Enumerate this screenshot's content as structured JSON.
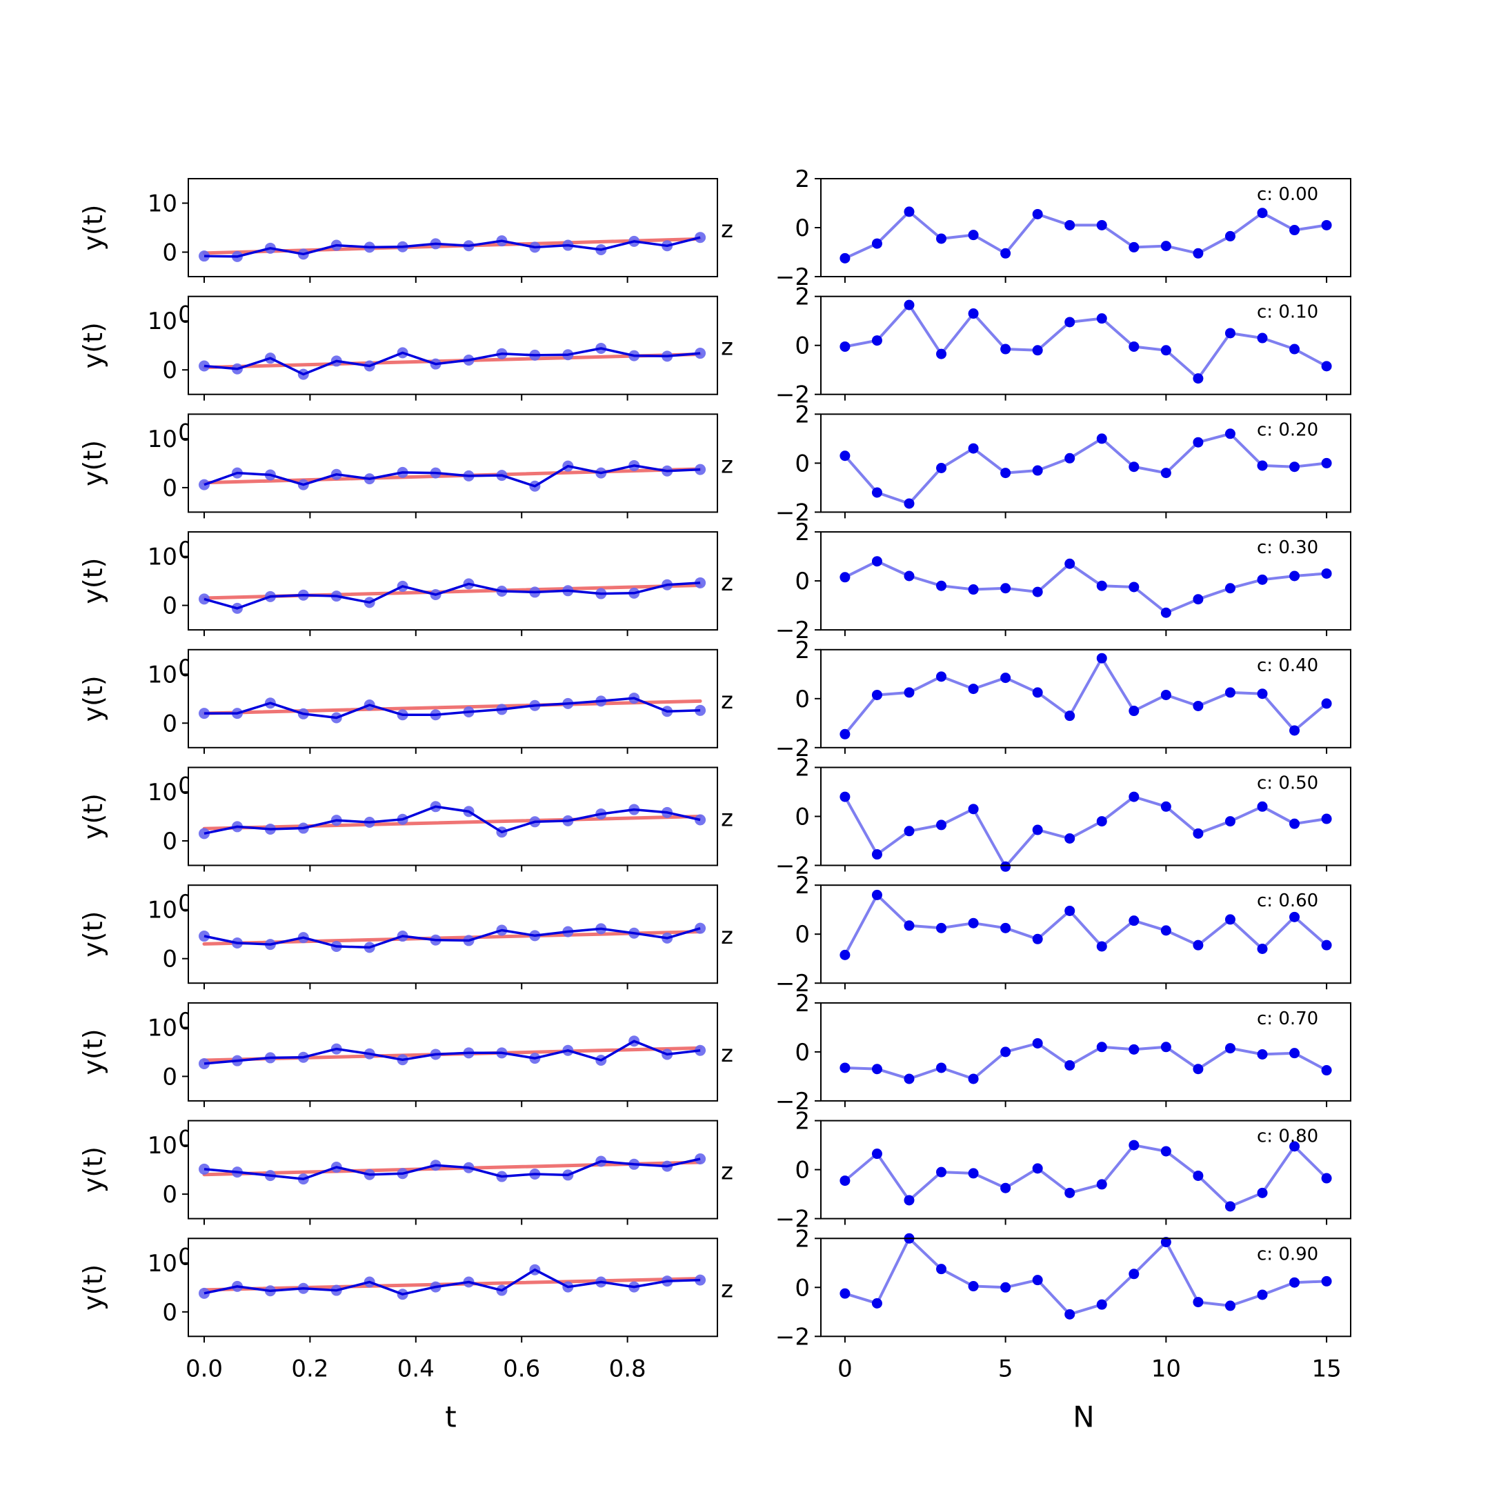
{
  "chart_data": [
    {
      "type": "line",
      "column": "left",
      "xlabel": "t",
      "ylabel": "y(t)",
      "xlim": [
        -0.03,
        0.97
      ],
      "ylim": [
        -5,
        15
      ],
      "xticks": [
        0.0,
        0.2,
        0.4,
        0.6,
        0.8
      ],
      "xtick_labels": [
        "0.0",
        "0.2",
        "0.4",
        "0.6",
        "0.8"
      ],
      "yticks": [
        0,
        10
      ],
      "ytick_labels": [
        "0",
        "10"
      ],
      "x": [
        0.0,
        0.0625,
        0.125,
        0.1875,
        0.25,
        0.3125,
        0.375,
        0.4375,
        0.5,
        0.5625,
        0.625,
        0.6875,
        0.75,
        0.8125,
        0.875,
        0.9375
      ],
      "colors": {
        "data": "#0000dd",
        "data_marker": "#6666ee",
        "trend": "#ee6666"
      },
      "panels": [
        {
          "trend": [
            -0.2,
            2.7
          ],
          "values": [
            -0.8,
            -0.9,
            0.8,
            -0.4,
            1.4,
            1.0,
            1.1,
            1.7,
            1.3,
            2.3,
            1.0,
            1.4,
            0.5,
            2.2,
            1.3,
            3.0
          ]
        },
        {
          "trend": [
            0.5,
            3.2
          ],
          "values": [
            0.8,
            0.2,
            2.4,
            -0.9,
            1.8,
            0.8,
            3.5,
            1.2,
            2.0,
            3.3,
            3.0,
            3.1,
            4.4,
            2.9,
            2.8,
            3.4
          ]
        },
        {
          "trend": [
            1.0,
            3.8
          ],
          "values": [
            0.6,
            3.0,
            2.6,
            0.6,
            2.7,
            1.8,
            3.1,
            3.0,
            2.4,
            2.5,
            0.3,
            4.4,
            3.0,
            4.5,
            3.4,
            3.7
          ]
        },
        {
          "trend": [
            1.5,
            4.1
          ],
          "values": [
            1.3,
            -0.6,
            1.8,
            2.1,
            1.9,
            0.6,
            3.9,
            2.2,
            4.4,
            2.9,
            2.7,
            3.0,
            2.4,
            2.5,
            4.2,
            4.6
          ]
        },
        {
          "trend": [
            2.0,
            4.5
          ],
          "values": [
            2.0,
            2.0,
            4.1,
            1.9,
            1.1,
            3.7,
            1.7,
            1.7,
            2.3,
            2.8,
            3.6,
            4.0,
            4.5,
            5.1,
            2.4,
            2.6
          ]
        },
        {
          "trend": [
            2.5,
            5.0
          ],
          "values": [
            1.5,
            2.9,
            2.4,
            2.6,
            4.2,
            3.8,
            4.4,
            7.0,
            6.0,
            1.8,
            3.9,
            4.1,
            5.5,
            6.4,
            5.8,
            4.3
          ]
        },
        {
          "trend": [
            3.0,
            5.5
          ],
          "values": [
            4.6,
            3.2,
            2.9,
            4.3,
            2.5,
            2.3,
            4.6,
            3.8,
            3.7,
            5.8,
            4.7,
            5.5,
            6.1,
            5.2,
            4.2,
            6.2
          ]
        },
        {
          "trend": [
            3.3,
            5.8
          ],
          "values": [
            2.6,
            3.2,
            3.8,
            3.9,
            5.6,
            4.6,
            3.4,
            4.5,
            4.8,
            4.8,
            3.7,
            5.3,
            3.3,
            7.2,
            4.5,
            5.3
          ]
        },
        {
          "trend": [
            4.0,
            6.5
          ],
          "values": [
            5.1,
            4.5,
            3.8,
            3.1,
            5.5,
            4.0,
            4.2,
            5.9,
            5.4,
            3.6,
            4.1,
            3.9,
            6.7,
            6.1,
            5.7,
            7.2
          ]
        },
        {
          "trend": [
            4.5,
            6.8
          ],
          "values": [
            3.8,
            5.2,
            4.3,
            4.8,
            4.4,
            6.1,
            3.6,
            5.1,
            6.1,
            4.4,
            8.6,
            5.1,
            6.1,
            5.1,
            6.3,
            6.5
          ]
        }
      ]
    },
    {
      "type": "line",
      "column": "right",
      "xlabel": "N",
      "ylabel": "",
      "xlim": [
        -0.75,
        15.75
      ],
      "ylim": [
        -2,
        2
      ],
      "xticks": [
        0,
        5,
        10,
        15
      ],
      "xtick_labels": [
        "0",
        "5",
        "10",
        "15"
      ],
      "yticks": [
        -2,
        0,
        2
      ],
      "ytick_labels": [
        "−2",
        "0",
        "2"
      ],
      "x": [
        0,
        1,
        2,
        3,
        4,
        5,
        6,
        7,
        8,
        9,
        10,
        11,
        12,
        13,
        14,
        15
      ],
      "colors": {
        "line": "#7f7ff0",
        "marker": "#0000ee"
      },
      "panels": [
        {
          "label": "c: 0.00",
          "values": [
            -1.25,
            -0.65,
            0.65,
            -0.45,
            -0.3,
            -1.05,
            0.55,
            0.1,
            0.1,
            -0.8,
            -0.75,
            -1.05,
            -0.35,
            0.6,
            -0.1,
            0.1
          ]
        },
        {
          "label": "c: 0.10",
          "values": [
            -0.05,
            0.2,
            1.65,
            -0.35,
            1.3,
            -0.15,
            -0.2,
            0.95,
            1.1,
            -0.05,
            -0.2,
            -1.35,
            0.5,
            0.3,
            -0.15,
            -0.85
          ]
        },
        {
          "label": "c: 0.20",
          "values": [
            0.3,
            -1.2,
            -1.65,
            -0.2,
            0.6,
            -0.4,
            -0.3,
            0.2,
            1.0,
            -0.15,
            -0.4,
            0.85,
            1.2,
            -0.1,
            -0.15,
            0.0
          ]
        },
        {
          "label": "c: 0.30",
          "values": [
            0.15,
            0.8,
            0.2,
            -0.2,
            -0.35,
            -0.3,
            -0.45,
            0.7,
            -0.2,
            -0.25,
            -1.3,
            -0.75,
            -0.3,
            0.05,
            0.2,
            0.3
          ]
        },
        {
          "label": "c: 0.40",
          "values": [
            -1.45,
            0.15,
            0.25,
            0.9,
            0.4,
            0.85,
            0.25,
            -0.7,
            1.65,
            -0.5,
            0.15,
            -0.3,
            0.25,
            0.2,
            -1.3,
            -0.2
          ]
        },
        {
          "label": "c: 0.50",
          "values": [
            0.8,
            -1.55,
            -0.6,
            -0.35,
            0.3,
            -2.05,
            -0.55,
            -0.9,
            -0.2,
            0.8,
            0.4,
            -0.7,
            -0.2,
            0.4,
            -0.3,
            -0.1
          ]
        },
        {
          "label": "c: 0.60",
          "values": [
            -0.85,
            1.6,
            0.35,
            0.25,
            0.45,
            0.25,
            -0.2,
            0.95,
            -0.5,
            0.55,
            0.15,
            -0.45,
            0.6,
            -0.6,
            0.7,
            -0.45
          ]
        },
        {
          "label": "c: 0.70",
          "values": [
            -0.65,
            -0.7,
            -1.1,
            -0.65,
            -1.1,
            0.0,
            0.35,
            -0.55,
            0.2,
            0.1,
            0.2,
            -0.7,
            0.15,
            -0.1,
            -0.05,
            -0.75
          ]
        },
        {
          "label": "c: 0.80",
          "values": [
            -0.45,
            0.65,
            -1.25,
            -0.1,
            -0.15,
            -0.75,
            0.05,
            -0.95,
            -0.6,
            1.0,
            0.75,
            -0.25,
            -1.5,
            -0.95,
            0.95,
            -0.35
          ]
        },
        {
          "label": "c: 0.90",
          "values": [
            -0.25,
            -0.65,
            2.0,
            0.75,
            0.05,
            0.0,
            0.3,
            -1.1,
            -0.7,
            0.55,
            1.85,
            -0.6,
            -0.75,
            -0.3,
            0.2,
            0.25
          ]
        }
      ]
    }
  ],
  "overlap_glyphs": {
    "right_edge": "z",
    "left_edge": "0"
  }
}
